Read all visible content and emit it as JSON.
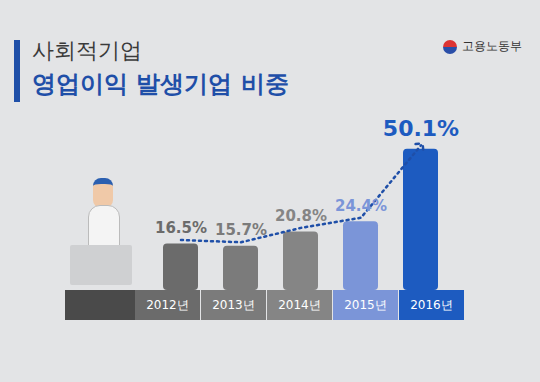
{
  "chart_data": {
    "type": "bar",
    "title": "사회적기업",
    "subtitle": "영업이익 발생기업 비중",
    "source": "고용노동부",
    "categories": [
      "2012년",
      "2013년",
      "2014년",
      "2015년",
      "2016년"
    ],
    "values": [
      16.5,
      15.7,
      20.8,
      24.4,
      50.1
    ],
    "value_labels": [
      "16.5%",
      "15.7%",
      "20.8%",
      "24.4%",
      "50.1%"
    ],
    "colors": [
      "#6b6b6b",
      "#7b7b7b",
      "#858585",
      "#7b95d8",
      "#1d5bc0"
    ],
    "ylim": [
      0,
      55
    ],
    "tick_labels": "x",
    "data_labels": true,
    "line_style": "dotted"
  }
}
